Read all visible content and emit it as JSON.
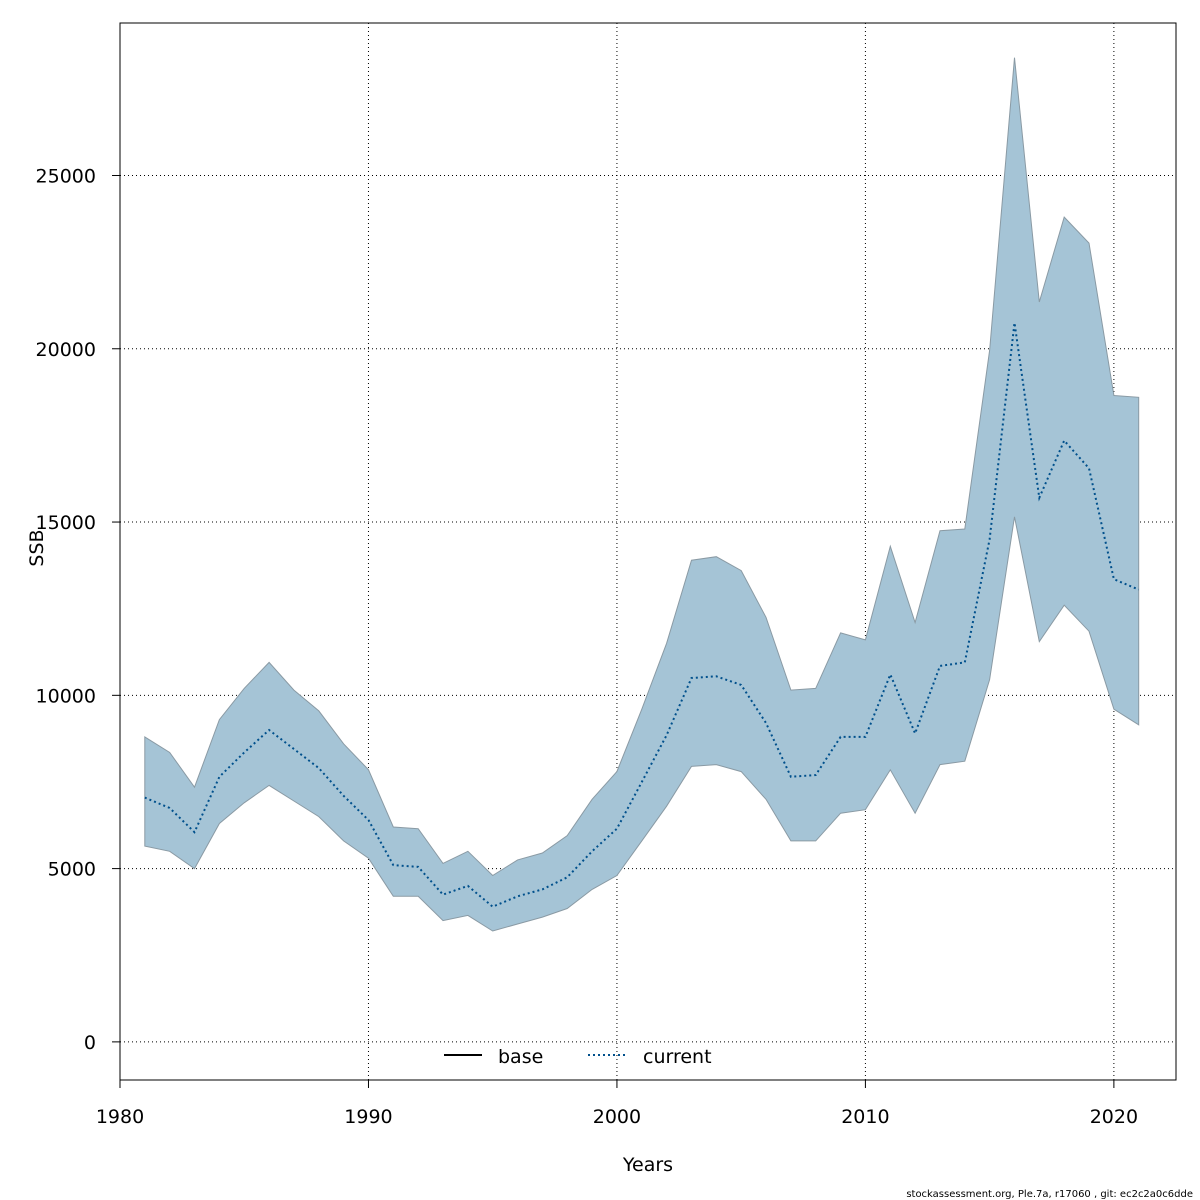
{
  "chart_data": {
    "type": "area",
    "title": "",
    "xlabel": "Years",
    "ylabel": "SSB",
    "xlim": [
      1980,
      2022.5
    ],
    "ylim": [
      -1100,
      29400
    ],
    "xticks": [
      1980,
      1990,
      2000,
      2010,
      2020
    ],
    "yticks": [
      0,
      5000,
      10000,
      15000,
      20000,
      25000
    ],
    "grid": true,
    "legend": {
      "position": "bottom-center",
      "entries": [
        {
          "label": "base",
          "style": "solid",
          "color": "#000000"
        },
        {
          "label": "current",
          "style": "dotted",
          "color": "#00508c"
        }
      ]
    },
    "band_color": "#a5c4d6",
    "x": [
      1981,
      1982,
      1983,
      1984,
      1985,
      1986,
      1987,
      1988,
      1989,
      1990,
      1991,
      1992,
      1993,
      1994,
      1995,
      1996,
      1997,
      1998,
      1999,
      2000,
      2001,
      2002,
      2003,
      2004,
      2005,
      2006,
      2007,
      2008,
      2009,
      2010,
      2011,
      2012,
      2013,
      2014,
      2015,
      2016,
      2017,
      2018,
      2019,
      2020,
      2021
    ],
    "series": [
      {
        "name": "current",
        "values": [
          7050,
          6750,
          6050,
          7650,
          8350,
          9000,
          8450,
          7900,
          7100,
          6400,
          5100,
          5050,
          4250,
          4500,
          3900,
          4200,
          4400,
          4750,
          5500,
          6150,
          7500,
          8850,
          10500,
          10550,
          10300,
          9200,
          7650,
          7700,
          8800,
          8800,
          10600,
          8900,
          10850,
          10950,
          14500,
          20750,
          15700,
          17350,
          16550,
          13350,
          13050
        ],
        "lower": [
          5650,
          5500,
          5000,
          6300,
          6900,
          7400,
          6950,
          6500,
          5800,
          5300,
          4200,
          4200,
          3500,
          3650,
          3200,
          3400,
          3600,
          3850,
          4400,
          4800,
          5800,
          6800,
          7950,
          8000,
          7800,
          7000,
          5800,
          5800,
          6600,
          6700,
          7850,
          6600,
          8000,
          8100,
          10450,
          15150,
          11550,
          12600,
          11850,
          9600,
          9150
        ],
        "upper": [
          8800,
          8350,
          7350,
          9300,
          10200,
          10950,
          10150,
          9550,
          8600,
          7850,
          6200,
          6150,
          5150,
          5500,
          4800,
          5250,
          5450,
          5950,
          7000,
          7800,
          9600,
          11500,
          13900,
          14000,
          13600,
          12250,
          10150,
          10200,
          11800,
          11600,
          14300,
          12100,
          14750,
          14800,
          19950,
          28400,
          21350,
          23800,
          23050,
          18650,
          18600
        ]
      }
    ]
  },
  "footer": "stockassessment.org, Ple.7a, r17060 , git: ec2c2a0c6dde"
}
